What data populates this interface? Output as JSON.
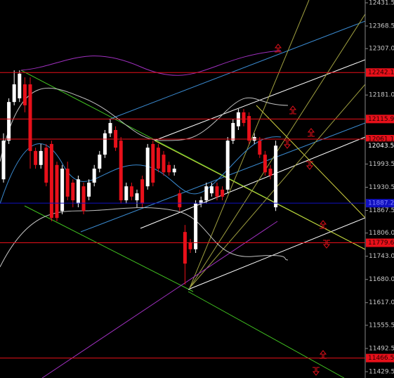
{
  "chart_data": {
    "type": "candlestick",
    "ylim": [
      11412.3,
      12439.1
    ],
    "yticks": [
      12431.5,
      12368.5,
      {
        "value": 12307,
        "label": "12307.0"
      },
      {
        "value": 12181,
        "label": "12181.0"
      },
      11993.5,
      11930.5,
      11867.5,
      {
        "value": 11806,
        "label": "11806.0"
      },
      {
        "value": 11743,
        "label": "11743.0"
      },
      {
        "value": 11680,
        "label": "11680.0"
      },
      {
        "value": 11617,
        "label": "11617.0"
      },
      11555.5,
      11492.5,
      11429.5
    ],
    "up_color": "#ffffff",
    "down_color": "#e8101a",
    "open": [
      11952,
      12057,
      12162,
      12172,
      12210,
      12210,
      12029,
      11991,
      12038,
      12048,
      11991,
      11866,
      11981,
      11943,
      11886,
      11933,
      11905,
      11943,
      11981,
      12019,
      12077,
      12086,
      12057,
      11895,
      11933,
      11895,
      11952,
      11933,
      12048,
      12038,
      12019,
      11991,
      11971,
      11914,
      11809,
      11781,
      11762,
      11886,
      11895,
      11914,
      11933,
      11924,
      11924,
      12057,
      12096,
      12134,
      12124,
      12057,
      12057,
      12019,
      11981,
      11876
    ],
    "high": [
      12077,
      12172,
      12248,
      12248,
      12229,
      12229,
      12038,
      12048,
      12048,
      12057,
      12000,
      11991,
      12000,
      11952,
      11962,
      11943,
      11952,
      11991,
      12029,
      12086,
      12115,
      12096,
      12067,
      11943,
      11943,
      11924,
      11962,
      12048,
      12057,
      12048,
      12029,
      12000,
      11991,
      11924,
      11828,
      11790,
      11895,
      11905,
      11943,
      11943,
      11943,
      11933,
      12067,
      12115,
      12143,
      12143,
      12134,
      12077,
      12067,
      12029,
      11991,
      12057
    ],
    "low": [
      11943,
      12048,
      12153,
      12162,
      12134,
      11981,
      11981,
      11981,
      11933,
      11838,
      11838,
      11857,
      11895,
      11876,
      11876,
      11857,
      11895,
      11933,
      11971,
      12010,
      12067,
      12029,
      11886,
      11886,
      11895,
      11876,
      11876,
      11924,
      11933,
      11971,
      11962,
      11962,
      11962,
      11866,
      11666,
      11752,
      11752,
      11876,
      11886,
      11905,
      11895,
      11895,
      11914,
      12048,
      12086,
      12096,
      12048,
      12048,
      12010,
      11962,
      11952,
      11866
    ],
    "close": [
      12057,
      12162,
      12210,
      12239,
      12153,
      12029,
      11991,
      12029,
      11943,
      11847,
      11847,
      11981,
      11905,
      11895,
      11952,
      11866,
      11943,
      11981,
      12019,
      12077,
      12105,
      12038,
      11895,
      11933,
      11905,
      11914,
      11886,
      12038,
      11943,
      11981,
      11971,
      11971,
      11981,
      11876,
      11723,
      11762,
      11886,
      11895,
      11933,
      11933,
      11905,
      11905,
      12057,
      12105,
      12134,
      12105,
      12057,
      12067,
      12019,
      11971,
      11962,
      12043.5
    ],
    "levels": [
      {
        "value": 12242.1,
        "color": "#e8101a"
      },
      {
        "value": 12115.9,
        "color": "#e8101a"
      },
      {
        "value": 12061.1,
        "color": "#e8101a"
      },
      {
        "value": 12043.5,
        "color": "#000000"
      },
      {
        "value": 11887.2,
        "color": "#1010c0"
      },
      {
        "value": 11779.6,
        "color": "#e8101a"
      },
      {
        "value": 11466.5,
        "color": "#e8101a"
      }
    ]
  }
}
